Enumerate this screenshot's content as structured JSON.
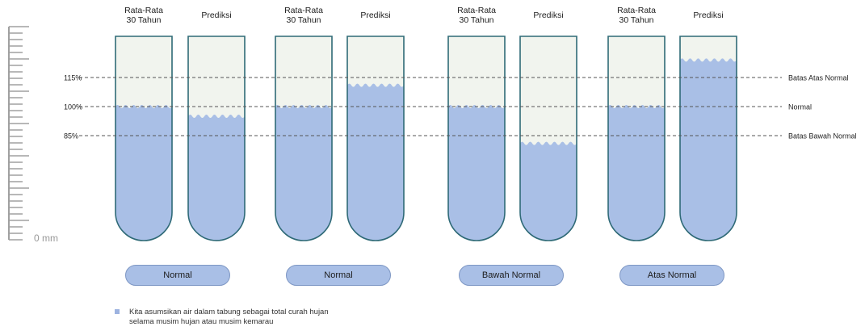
{
  "header_labels": {
    "average": "Rata-Rata\n30 Tahun",
    "prediction": "Prediksi"
  },
  "scale": {
    "zero_label": "0 mm"
  },
  "levels": [
    {
      "percent": 115,
      "left_label": "115%",
      "right_label": "Batas Atas Normal"
    },
    {
      "percent": 100,
      "left_label": "100%",
      "right_label": "Normal"
    },
    {
      "percent": 85,
      "left_label": "85%",
      "right_label": "Batas Bawah Normal"
    }
  ],
  "groups": [
    {
      "category": "Normal",
      "average_level_percent": 100,
      "prediction_level_percent": 95
    },
    {
      "category": "Normal",
      "average_level_percent": 100,
      "prediction_level_percent": 111
    },
    {
      "category": "Bawah Normal",
      "average_level_percent": 100,
      "prediction_level_percent": 81
    },
    {
      "category": "Atas Normal",
      "average_level_percent": 100,
      "prediction_level_percent": 124
    }
  ],
  "note": {
    "line1": "Kita asumsikan air dalam tabung sebagai total curah hujan",
    "line2": "selama musim hujan atau musim kemarau"
  },
  "colors": {
    "water": "#a9bfe6",
    "tube_border": "#2f6a77",
    "empty_fill": "#f1f4ee",
    "dashed_line": "#555555",
    "ruler": "#a0a0a0"
  }
}
